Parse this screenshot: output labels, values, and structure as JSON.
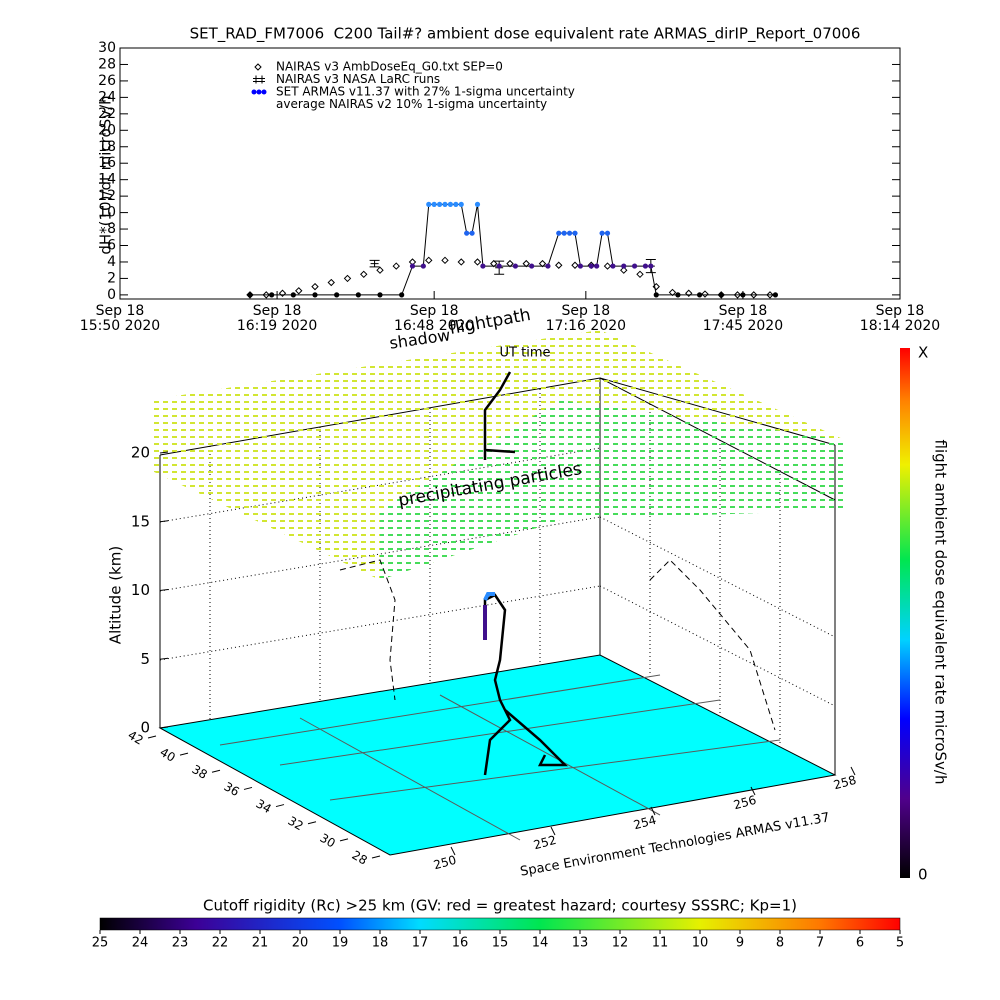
{
  "chart_data": [
    {
      "type": "line",
      "title": "SET_RAD_FM7006  C200 Tail#? ambient dose equivalent rate ARMAS_dirIP_Report_07006",
      "ylabel": "dH*(10)/dt microSv/h",
      "xlim": [
        "2020-09-18 15:50",
        "2020-09-18 18:14"
      ],
      "xticks": [
        {
          "value": "2020-09-18 15:50",
          "label": "Sep 18\n15:50 2020"
        },
        {
          "value": "2020-09-18 16:19",
          "label": "Sep 18\n16:19 2020"
        },
        {
          "value": "2020-09-18 16:48",
          "label": "Sep 18\n16:48 2020"
        },
        {
          "value": "2020-09-18 17:16",
          "label": "Sep 18\n17:16 2020"
        },
        {
          "value": "2020-09-18 17:45",
          "label": "Sep 18\n17:45 2020"
        },
        {
          "value": "2020-09-18 18:14",
          "label": "Sep 18\n18:14 2020"
        }
      ],
      "ylim": [
        -0.5,
        30
      ],
      "yticks": [
        0,
        2,
        4,
        6,
        8,
        10,
        12,
        14,
        16,
        18,
        20,
        22,
        24,
        26,
        28,
        30
      ],
      "series": [
        {
          "name": "NAIRAS v3 AmbDoseEq_G0.txt SEP=0",
          "color": "#000000",
          "marker": "diamond",
          "x": [
            "2020-09-18 16:14",
            "2020-09-18 16:17",
            "2020-09-18 16:20",
            "2020-09-18 16:23",
            "2020-09-18 16:26",
            "2020-09-18 16:29",
            "2020-09-18 16:32",
            "2020-09-18 16:35",
            "2020-09-18 16:38",
            "2020-09-18 16:41",
            "2020-09-18 16:44",
            "2020-09-18 16:47",
            "2020-09-18 16:50",
            "2020-09-18 16:53",
            "2020-09-18 16:56",
            "2020-09-18 16:59",
            "2020-09-18 17:02",
            "2020-09-18 17:05",
            "2020-09-18 17:08",
            "2020-09-18 17:11",
            "2020-09-18 17:14",
            "2020-09-18 17:17",
            "2020-09-18 17:20",
            "2020-09-18 17:23",
            "2020-09-18 17:26",
            "2020-09-18 17:29",
            "2020-09-18 17:32",
            "2020-09-18 17:35",
            "2020-09-18 17:38",
            "2020-09-18 17:41",
            "2020-09-18 17:44",
            "2020-09-18 17:47",
            "2020-09-18 17:50"
          ],
          "values": [
            0,
            0,
            0.2,
            0.5,
            1,
            1.5,
            2,
            2.5,
            3,
            3.5,
            4,
            4.2,
            4.2,
            4,
            4,
            3.8,
            3.8,
            3.8,
            3.8,
            3.6,
            3.6,
            3.6,
            3.5,
            3,
            2.5,
            1,
            0.3,
            0.2,
            0.1,
            0,
            0,
            0,
            0
          ]
        },
        {
          "name": "NAIRAS v3 NASA LaRC runs",
          "color": "#000000",
          "marker": "errorbar",
          "x": [
            "2020-09-18 16:37",
            "2020-09-18 17:00",
            "2020-09-18 17:28"
          ],
          "values": [
            3.8,
            3.3,
            3.5
          ],
          "errors": [
            0.4,
            0.8,
            0.8
          ]
        },
        {
          "name": "SET ARMAS v11.37 with 27% 1-sigma uncertainty",
          "color": "#0000ff",
          "marker": "dot",
          "x": [
            "2020-09-18 16:14",
            "2020-09-18 16:18",
            "2020-09-18 16:22",
            "2020-09-18 16:26",
            "2020-09-18 16:30",
            "2020-09-18 16:34",
            "2020-09-18 16:38",
            "2020-09-18 16:42",
            "2020-09-18 16:44",
            "2020-09-18 16:46",
            "2020-09-18 16:47",
            "2020-09-18 16:48",
            "2020-09-18 16:49",
            "2020-09-18 16:50",
            "2020-09-18 16:51",
            "2020-09-18 16:52",
            "2020-09-18 16:53",
            "2020-09-18 16:54",
            "2020-09-18 16:55",
            "2020-09-18 16:56",
            "2020-09-18 16:57",
            "2020-09-18 17:00",
            "2020-09-18 17:03",
            "2020-09-18 17:06",
            "2020-09-18 17:09",
            "2020-09-18 17:11",
            "2020-09-18 17:12",
            "2020-09-18 17:13",
            "2020-09-18 17:14",
            "2020-09-18 17:15",
            "2020-09-18 17:17",
            "2020-09-18 17:18",
            "2020-09-18 17:19",
            "2020-09-18 17:20",
            "2020-09-18 17:21",
            "2020-09-18 17:23",
            "2020-09-18 17:25",
            "2020-09-18 17:27",
            "2020-09-18 17:28",
            "2020-09-18 17:29",
            "2020-09-18 17:33",
            "2020-09-18 17:37",
            "2020-09-18 17:41",
            "2020-09-18 17:45",
            "2020-09-18 17:51"
          ],
          "values": [
            0,
            0,
            0,
            0,
            0,
            0,
            0,
            0,
            3.5,
            3.5,
            11,
            11,
            11,
            11,
            11,
            11,
            11,
            7.5,
            7.5,
            11,
            3.5,
            3.5,
            3.5,
            3.5,
            3.5,
            7.5,
            7.5,
            7.5,
            7.5,
            3.5,
            3.5,
            3.5,
            7.5,
            7.5,
            3.5,
            3.5,
            3.5,
            3.5,
            3.5,
            0,
            0,
            0,
            0,
            0,
            0
          ],
          "colors": [
            "#000000",
            "#000000",
            "#000000",
            "#000000",
            "#000000",
            "#000000",
            "#000000",
            "#000000",
            "#40108c",
            "#40108c",
            "#2a8cff",
            "#2a8cff",
            "#2a8cff",
            "#2a8cff",
            "#2a8cff",
            "#2a8cff",
            "#2a8cff",
            "#1e64f0",
            "#1e64f0",
            "#2a8cff",
            "#40108c",
            "#40108c",
            "#40108c",
            "#40108c",
            "#40108c",
            "#1e64f0",
            "#1e64f0",
            "#1e64f0",
            "#1e64f0",
            "#40108c",
            "#40108c",
            "#40108c",
            "#1e64f0",
            "#1e64f0",
            "#40108c",
            "#40108c",
            "#40108c",
            "#40108c",
            "#40108c",
            "#000000",
            "#000000",
            "#000000",
            "#000000",
            "#000000",
            "#000000"
          ]
        },
        {
          "name": "average NAIRAS v2 10% 1-sigma uncertainty",
          "color": "#000000",
          "marker": "none",
          "x": [],
          "values": []
        }
      ]
    },
    {
      "type": "3d",
      "zlabel": "Altitude (km)",
      "zlim": [
        0,
        20
      ],
      "zticks": [
        0,
        5,
        10,
        15,
        20
      ],
      "xlim": [
        250,
        258
      ],
      "xticks": [
        250,
        252,
        254,
        256,
        258
      ],
      "ylim": [
        28,
        42
      ],
      "yticks": [
        28,
        30,
        32,
        34,
        36,
        38,
        40,
        42
      ],
      "annotations": [
        "shadow",
        "flightpath",
        "UT time",
        "precipitating particles",
        "Space Environment Technologies ARMAS v11.37"
      ],
      "colorbars": [
        {
          "orientation": "vertical",
          "label": "flight ambient dose equivalent rate microSv/h",
          "end_labels": [
            "0",
            "X"
          ]
        },
        {
          "orientation": "horizontal",
          "label": "Cutoff rigidity (Rc) >25 km (GV: red = greatest hazard; courtesy SSSRC; Kp=1)",
          "lim": [
            25,
            5
          ],
          "ticks": [
            25,
            24,
            23,
            22,
            21,
            20,
            19,
            18,
            17,
            16,
            15,
            14,
            13,
            12,
            11,
            10,
            9,
            8,
            7,
            6,
            5
          ]
        }
      ]
    }
  ]
}
